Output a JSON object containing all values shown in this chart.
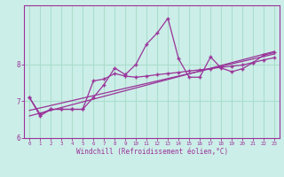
{
  "xlabel": "Windchill (Refroidissement éolien,°C)",
  "bg_color": "#cceee8",
  "grid_color": "#aaddcc",
  "line_color": "#993399",
  "xlim": [
    -0.5,
    23.5
  ],
  "ylim": [
    6.0,
    9.6
  ],
  "yticks": [
    6,
    7,
    8
  ],
  "xticks": [
    0,
    1,
    2,
    3,
    4,
    5,
    6,
    7,
    8,
    9,
    10,
    11,
    12,
    13,
    14,
    15,
    16,
    17,
    18,
    19,
    20,
    21,
    22,
    23
  ],
  "trend1_x": [
    0,
    23
  ],
  "trend1_y": [
    6.6,
    8.35
  ],
  "trend2_x": [
    0,
    23
  ],
  "trend2_y": [
    6.75,
    8.28
  ],
  "series2_x": [
    0,
    1,
    2,
    3,
    4,
    5,
    6,
    7,
    8,
    9,
    10,
    11,
    12,
    13,
    14,
    15,
    16,
    17,
    18,
    19,
    20,
    21,
    22,
    23
  ],
  "series2_y": [
    7.1,
    6.65,
    6.78,
    6.78,
    6.78,
    6.78,
    7.55,
    7.6,
    7.75,
    7.68,
    7.65,
    7.68,
    7.72,
    7.75,
    7.78,
    7.82,
    7.85,
    7.88,
    7.92,
    7.95,
    7.98,
    8.05,
    8.12,
    8.18
  ],
  "main_x": [
    0,
    1,
    2,
    3,
    4,
    5,
    6,
    7,
    8,
    9,
    10,
    11,
    12,
    13,
    14,
    15,
    16,
    17,
    18,
    19,
    20,
    21,
    22,
    23
  ],
  "main_y": [
    7.1,
    6.6,
    6.78,
    6.78,
    6.78,
    6.78,
    7.1,
    7.45,
    7.9,
    7.72,
    8.0,
    8.55,
    8.85,
    9.25,
    8.15,
    7.65,
    7.65,
    8.2,
    7.9,
    7.8,
    7.88,
    8.05,
    8.25,
    8.32
  ]
}
